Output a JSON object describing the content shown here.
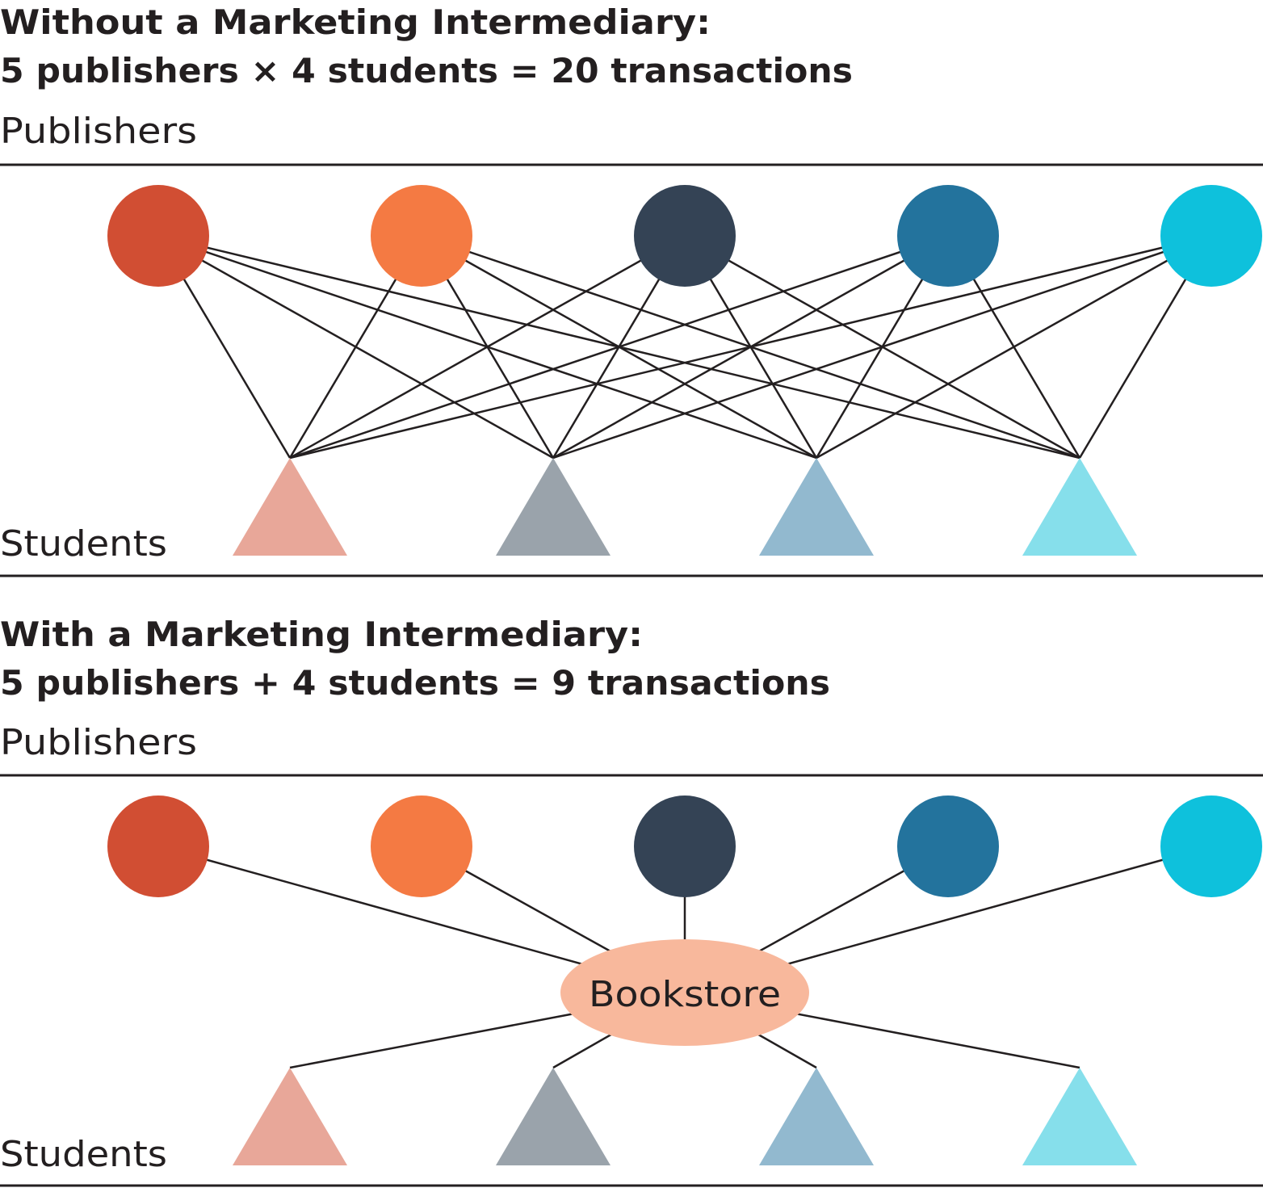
{
  "top": {
    "title_line1": "Without a Marketing Intermediary:",
    "title_line2": "5 publishers × 4 students = 20 transactions",
    "publishers_label": "Publishers",
    "students_label": "Students",
    "connection": "every publisher to every student"
  },
  "bottom": {
    "title_line1": "With a Marketing Intermediary:",
    "title_line2": "5 publishers + 4 students = 9 transactions",
    "publishers_label": "Publishers",
    "students_label": "Students",
    "intermediary_label": "Bookstore",
    "intermediary_color": "#f8b89c",
    "connection": "every publisher and student to the bookstore"
  },
  "publisher_colors": [
    "#d14e33",
    "#f47a43",
    "#344355",
    "#23739d",
    "#0ec1dc"
  ],
  "student_colors": [
    "#e8a799",
    "#9aa3ab",
    "#92b9cf",
    "#86dfeb"
  ],
  "line_color": "#231f20"
}
